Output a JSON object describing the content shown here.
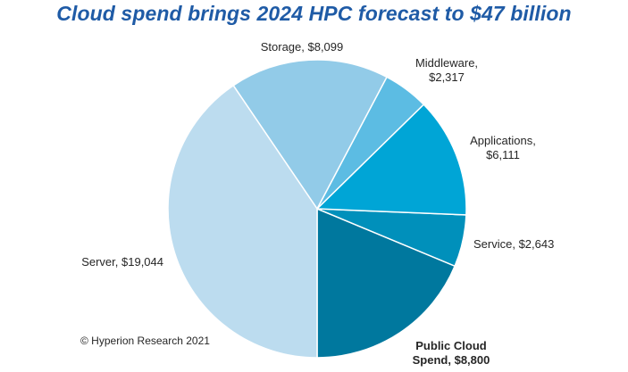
{
  "chart_data": {
    "type": "pie",
    "title": "Cloud spend brings 2024 HPC forecast to $47 billion",
    "slices": [
      {
        "name": "Public Cloud Spend",
        "label_lines": [
          "Public Cloud",
          "Spend, $8,800"
        ],
        "value": 8800,
        "color": "#00789e",
        "bold": true
      },
      {
        "name": "Service",
        "label_lines": [
          "Service, $2,643"
        ],
        "value": 2643,
        "color": "#0090bb",
        "bold": false
      },
      {
        "name": "Applications",
        "label_lines": [
          "Applications,",
          "$6,111"
        ],
        "value": 6111,
        "color": "#00a5d6",
        "bold": false
      },
      {
        "name": "Middleware",
        "label_lines": [
          "Middleware,",
          "$2,317"
        ],
        "value": 2317,
        "color": "#5cbce3",
        "bold": false
      },
      {
        "name": "Storage",
        "label_lines": [
          "Storage, $8,099"
        ],
        "value": 8099,
        "color": "#92cbe8",
        "bold": false
      },
      {
        "name": "Server",
        "label_lines": [
          "Server, $19,044"
        ],
        "value": 19044,
        "color": "#bcdcef",
        "bold": false
      }
    ],
    "start": "6 o'clock",
    "direction": "counter-clockwise"
  },
  "footer": {
    "copyright": "© Hyperion Research 2021"
  }
}
